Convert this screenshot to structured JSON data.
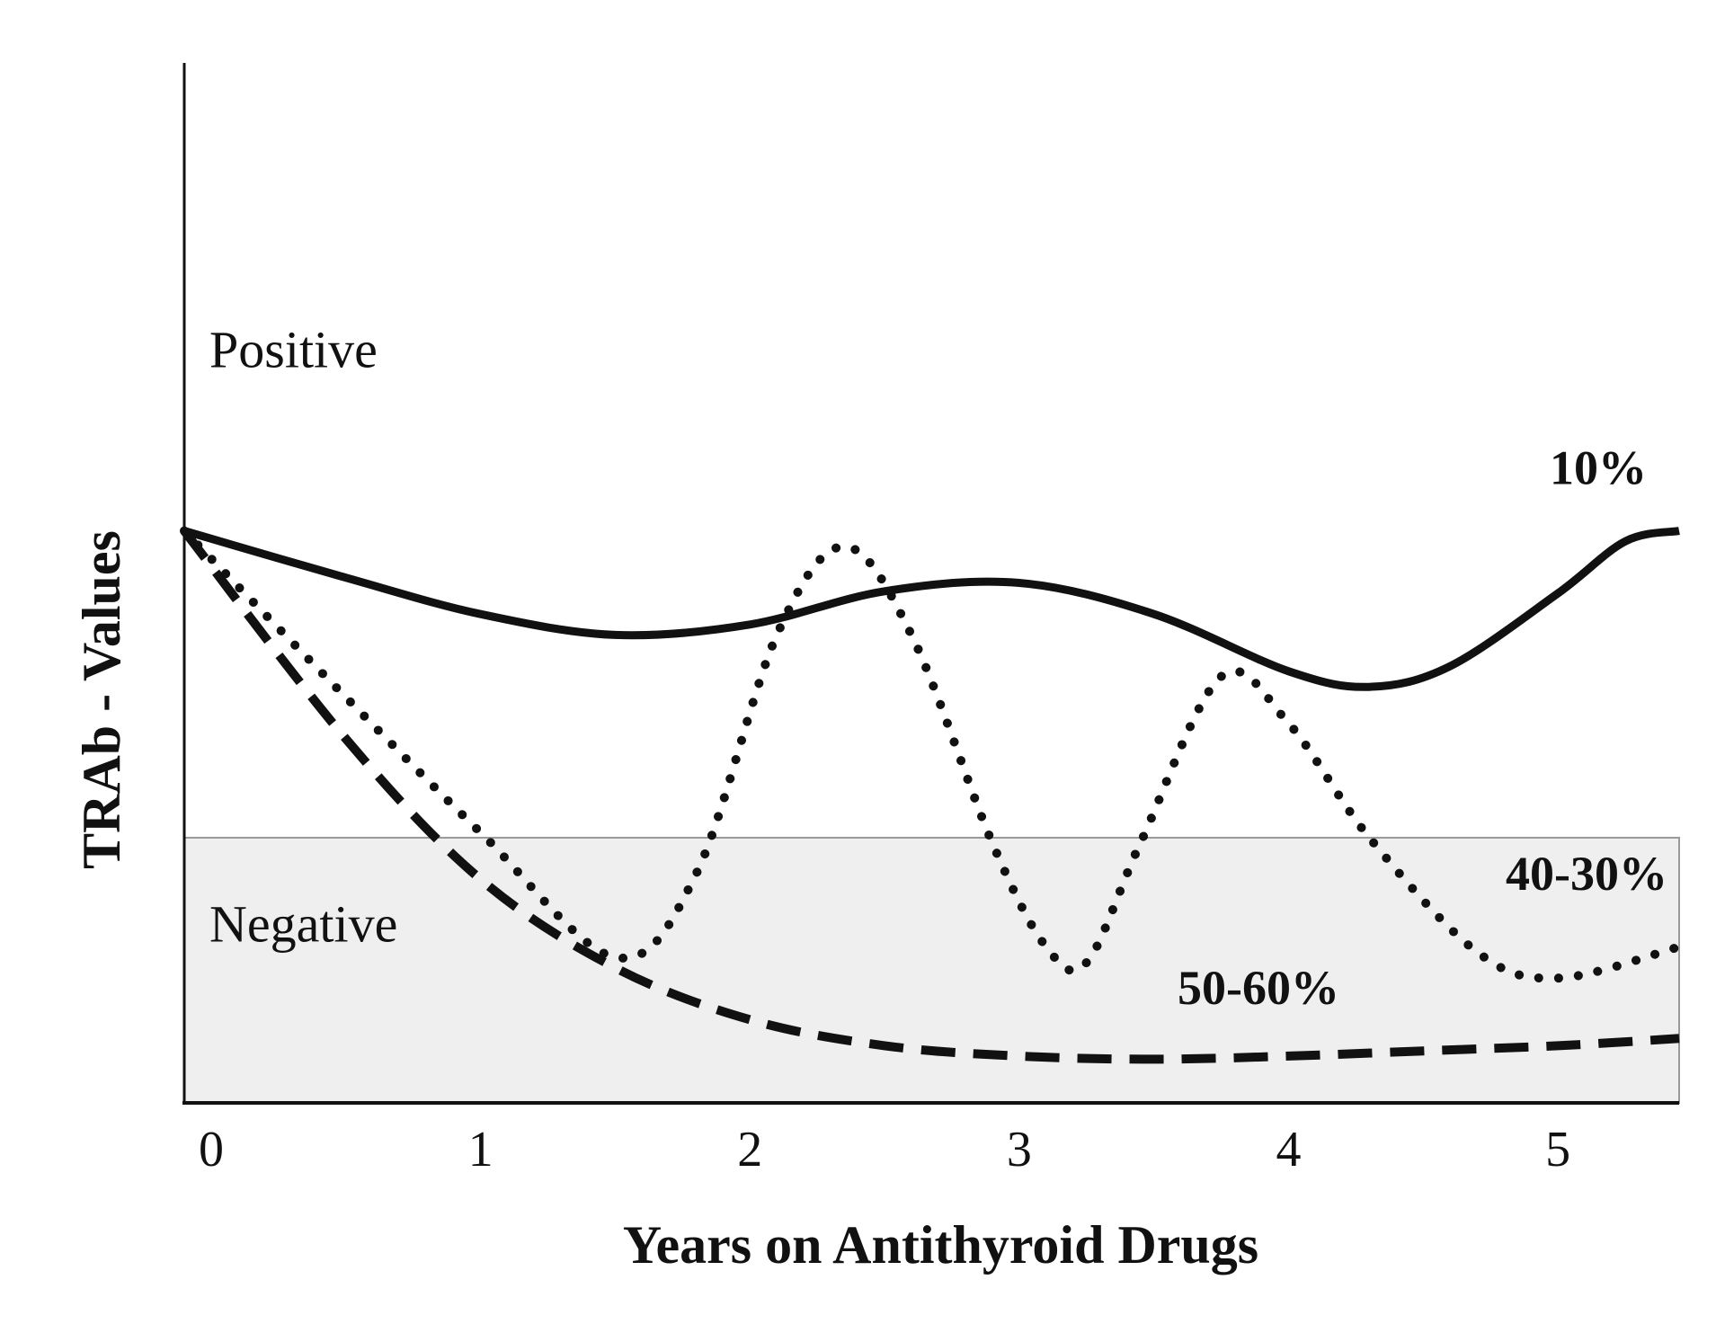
{
  "chart_data": {
    "type": "line",
    "xlabel": "Years on Antithyroid Drugs",
    "ylabel": "TRAb - Values",
    "xlim": [
      -0.1,
      5.45
    ],
    "ylim": [
      0,
      10
    ],
    "x_ticks": [
      0,
      1,
      2,
      3,
      4,
      5
    ],
    "y_ticks": [],
    "grid": false,
    "threshold": 2.55,
    "zones": [
      {
        "label": "Positive",
        "range": [
          2.55,
          10
        ]
      },
      {
        "label": "Negative",
        "range": [
          0,
          2.55
        ]
      }
    ],
    "negative_zone_color": "#efefef",
    "series": [
      {
        "name": "10%",
        "style": "solid",
        "x": [
          -0.1,
          0.5,
          1.0,
          1.5,
          2.0,
          2.5,
          3.0,
          3.5,
          4.0,
          4.3,
          4.6,
          5.0,
          5.25,
          5.45
        ],
        "y": [
          5.5,
          5.05,
          4.7,
          4.5,
          4.6,
          4.92,
          5.0,
          4.7,
          4.15,
          4.0,
          4.2,
          4.9,
          5.4,
          5.5
        ]
      },
      {
        "name": "40-30%",
        "style": "dotted",
        "x": [
          -0.1,
          0.5,
          1.0,
          1.5,
          1.8,
          2.1,
          2.35,
          2.6,
          2.9,
          3.1,
          3.25,
          3.45,
          3.75,
          4.0,
          4.3,
          4.7,
          5.0,
          5.45
        ],
        "y": [
          5.5,
          3.9,
          2.6,
          1.4,
          2.2,
          4.5,
          5.35,
          4.5,
          2.5,
          1.5,
          1.35,
          2.5,
          4.1,
          3.65,
          2.55,
          1.45,
          1.2,
          1.5
        ]
      },
      {
        "name": "50-60%",
        "style": "dashed",
        "x": [
          -0.1,
          0.5,
          1.0,
          1.5,
          2.0,
          2.5,
          3.0,
          3.5,
          4.0,
          4.5,
          5.0,
          5.45
        ],
        "y": [
          5.5,
          3.5,
          2.15,
          1.3,
          0.8,
          0.55,
          0.45,
          0.42,
          0.45,
          0.5,
          0.55,
          0.62
        ]
      }
    ]
  }
}
